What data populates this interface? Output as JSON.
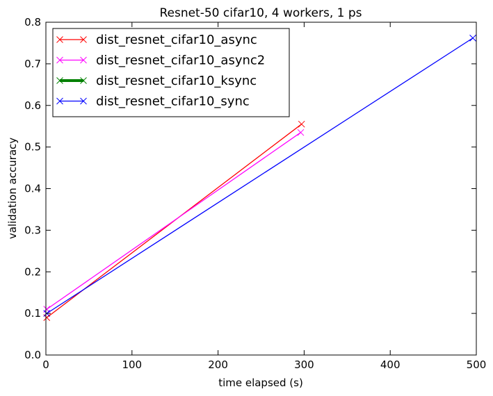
{
  "chart_data": {
    "type": "line",
    "title": "Resnet-50 cifar10, 4 workers, 1 ps",
    "xlabel": "time elapsed (s)",
    "ylabel": "validation accuracy",
    "xlim": [
      0,
      500
    ],
    "ylim": [
      0.0,
      0.8
    ],
    "xticks": [
      0,
      100,
      200,
      300,
      400,
      500
    ],
    "yticks": [
      0.0,
      0.1,
      0.2,
      0.3,
      0.4,
      0.5,
      0.6,
      0.7,
      0.8
    ],
    "xtick_labels": [
      "0",
      "100",
      "200",
      "300",
      "400",
      "500"
    ],
    "ytick_labels": [
      "0.0",
      "0.1",
      "0.2",
      "0.3",
      "0.4",
      "0.5",
      "0.6",
      "0.7",
      "0.8"
    ],
    "grid": false,
    "legend_position": "top-left",
    "series": [
      {
        "name": "dist_resnet_cifar10_async",
        "color": "#ff0000",
        "marker": "x",
        "points": [
          [
            1,
            0.09
          ],
          [
            297,
            0.555
          ]
        ]
      },
      {
        "name": "dist_resnet_cifar10_async2",
        "color": "#ff00ff",
        "marker": "x",
        "points": [
          [
            1,
            0.11
          ],
          [
            296,
            0.535
          ]
        ]
      },
      {
        "name": "dist_resnet_cifar10_ksync",
        "color": "#008000",
        "marker": "x",
        "points": []
      },
      {
        "name": "dist_resnet_cifar10_sync",
        "color": "#0000ff",
        "marker": "x",
        "points": [
          [
            1,
            0.1
          ],
          [
            496,
            0.762
          ]
        ]
      }
    ]
  }
}
